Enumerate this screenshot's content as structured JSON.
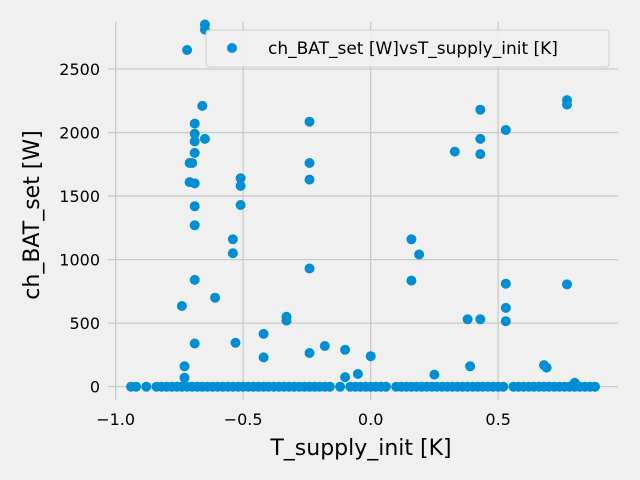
{
  "chart_data": {
    "type": "scatter",
    "xlabel": "T_supply_init [K]",
    "ylabel": "ch_BAT_set [W]",
    "xlim": [
      -1.03,
      0.97
    ],
    "ylim": [
      -105,
      2870
    ],
    "xticks": [
      -1.0,
      -0.5,
      0.0,
      0.5
    ],
    "xtick_labels": [
      "−1.0",
      "−0.5",
      "0.0",
      "0.5"
    ],
    "yticks": [
      0,
      500,
      1000,
      1500,
      2000,
      2500
    ],
    "ytick_labels": [
      "0",
      "500",
      "1000",
      "1500",
      "2000",
      "2500"
    ],
    "grid": true,
    "legend_position": "top-right",
    "colors": {
      "marker": "#008fd5",
      "background": "#f0f0f0",
      "grid": "#cbcbcb"
    },
    "series": [
      {
        "name": "ch_BAT_set [W]vsT_supply_init [K]",
        "x": [
          -0.65,
          -0.65,
          -0.72,
          -0.66,
          -0.69,
          -0.69,
          -0.65,
          -0.69,
          -0.69,
          -0.71,
          -0.7,
          -0.71,
          -0.69,
          -0.69,
          -0.69,
          -0.69,
          -0.69,
          -0.74,
          -0.73,
          -0.73,
          -0.61,
          -0.51,
          -0.51,
          -0.51,
          -0.54,
          -0.54,
          -0.53,
          -0.42,
          -0.42,
          -0.33,
          -0.33,
          -0.24,
          -0.24,
          -0.24,
          -0.24,
          -0.24,
          -0.18,
          -0.1,
          -0.1,
          -0.05,
          0.0,
          0.16,
          0.16,
          0.19,
          0.25,
          0.33,
          0.38,
          0.39,
          0.43,
          0.43,
          0.43,
          0.43,
          0.53,
          0.53,
          0.53,
          0.53,
          0.68,
          0.69,
          0.77,
          0.77,
          0.77,
          0.8,
          -0.94,
          -0.92,
          -0.88,
          -0.84,
          -0.82,
          -0.8,
          -0.78,
          -0.76,
          -0.74,
          -0.72,
          -0.7,
          -0.68,
          -0.66,
          -0.64,
          -0.62,
          -0.6,
          -0.58,
          -0.56,
          -0.54,
          -0.52,
          -0.5,
          -0.48,
          -0.46,
          -0.44,
          -0.42,
          -0.4,
          -0.38,
          -0.36,
          -0.34,
          -0.32,
          -0.3,
          -0.28,
          -0.26,
          -0.24,
          -0.22,
          -0.2,
          -0.18,
          -0.16,
          -0.12,
          -0.08,
          -0.06,
          -0.04,
          -0.02,
          0.0,
          0.02,
          0.04,
          0.06,
          0.1,
          0.12,
          0.14,
          0.16,
          0.18,
          0.2,
          0.22,
          0.24,
          0.26,
          0.28,
          0.3,
          0.32,
          0.34,
          0.36,
          0.38,
          0.4,
          0.42,
          0.44,
          0.46,
          0.48,
          0.5,
          0.52,
          0.56,
          0.58,
          0.6,
          0.62,
          0.64,
          0.66,
          0.68,
          0.7,
          0.72,
          0.74,
          0.76,
          0.78,
          0.8,
          0.82,
          0.84,
          0.86,
          0.88
        ],
        "y": [
          2850,
          2810,
          2650,
          2210,
          2070,
          1990,
          1950,
          1930,
          1840,
          1760,
          1760,
          1610,
          1600,
          1420,
          1270,
          840,
          340,
          635,
          160,
          70,
          700,
          1640,
          1580,
          1430,
          1160,
          1050,
          345,
          415,
          230,
          550,
          520,
          2085,
          1760,
          1630,
          930,
          265,
          320,
          290,
          75,
          100,
          240,
          1160,
          835,
          1040,
          95,
          1850,
          530,
          160,
          2180,
          1950,
          1830,
          530,
          2020,
          810,
          620,
          515,
          170,
          150,
          2255,
          2220,
          805,
          30,
          0,
          0,
          0,
          0,
          0,
          0,
          0,
          0,
          0,
          0,
          0,
          0,
          0,
          0,
          0,
          0,
          0,
          0,
          0,
          0,
          0,
          0,
          0,
          0,
          0,
          0,
          0,
          0,
          0,
          0,
          0,
          0,
          0,
          0,
          0,
          0,
          0,
          0,
          0,
          0,
          0,
          0,
          0,
          0,
          0,
          0,
          0,
          0,
          0,
          0,
          0,
          0,
          0,
          0,
          0,
          0,
          0,
          0,
          0,
          0,
          0,
          0,
          0,
          0,
          0,
          0,
          0,
          0,
          0,
          0,
          0,
          0,
          0,
          0,
          0,
          0,
          0,
          0,
          0,
          0,
          0,
          0,
          0,
          0,
          0,
          0
        ]
      }
    ]
  }
}
